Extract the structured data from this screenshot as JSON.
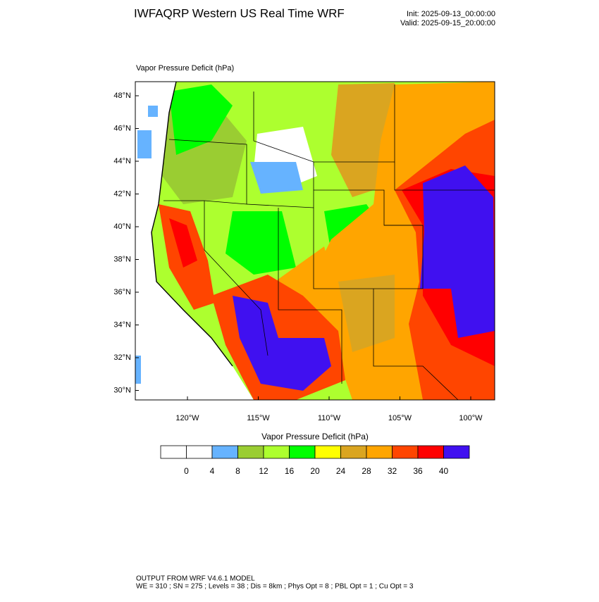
{
  "header": {
    "title": "IWFAQRP Western US Real Time WRF",
    "init": "Init: 2025-09-13_00:00:00",
    "valid": "Valid: 2025-09-15_20:00:00"
  },
  "map": {
    "label": "Vapor Pressure Deficit   (hPa)",
    "lat_ticks": [
      "48°N",
      "46°N",
      "44°N",
      "42°N",
      "40°N",
      "38°N",
      "36°N",
      "34°N",
      "32°N",
      "30°N"
    ],
    "lon_ticks": [
      "120°W",
      "115°W",
      "110°W",
      "105°W",
      "100°W"
    ]
  },
  "colorbar": {
    "title": "Vapor Pressure Deficit  (hPa)",
    "labels": [
      "0",
      "4",
      "8",
      "12",
      "16",
      "20",
      "24",
      "28",
      "32",
      "36",
      "40"
    ],
    "colors": [
      "#ffffff",
      "#ffffff",
      "#66b3ff",
      "#9acd32",
      "#adff2f",
      "#00ff00",
      "#ffff00",
      "#daa520",
      "#ffa500",
      "#ff4500",
      "#ff0000",
      "#4010f0"
    ]
  },
  "footer": {
    "line1": "OUTPUT FROM WRF V4.6.1 MODEL",
    "line2": "WE = 310 ; SN = 275 ; Levels = 38 ; Dis = 8km ; Phys Opt = 8 ; PBL Opt = 1 ; Cu Opt = 3"
  }
}
